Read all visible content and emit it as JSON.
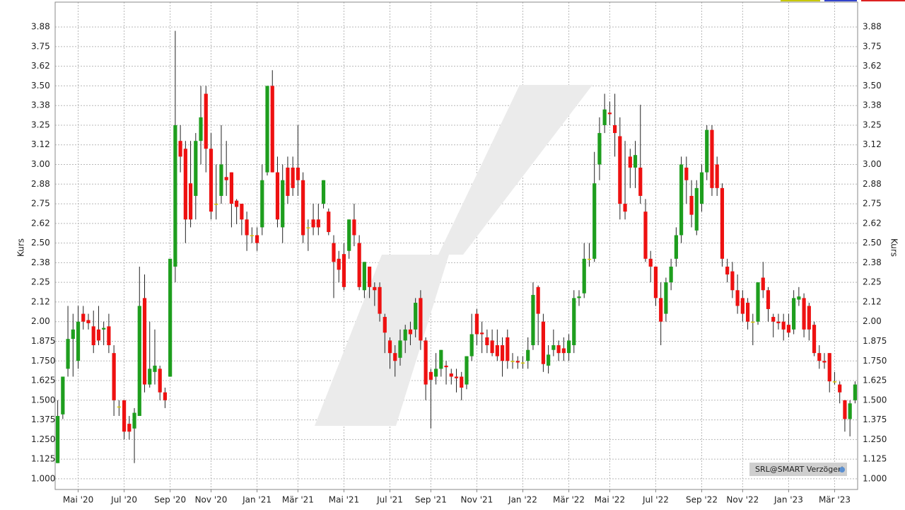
{
  "chart_data": {
    "type": "candlestick",
    "y_label": "Kurs",
    "y2_label": "Kurs",
    "badge": "SRL@SMART Verzögert",
    "up_color": "#1e9e1e",
    "down_color": "#ee1111",
    "flat_color": "#d6c600",
    "grid": true,
    "xlim": [
      -0.5,
      156.5
    ],
    "xticks": [
      {
        "value": 4,
        "label": "Mai '20"
      },
      {
        "value": 13,
        "label": "Jul '20"
      },
      {
        "value": 22,
        "label": "Sep '20"
      },
      {
        "value": 30,
        "label": "Nov '20"
      },
      {
        "value": 39,
        "label": "Jan '21"
      },
      {
        "value": 47,
        "label": "Mär '21"
      },
      {
        "value": 56,
        "label": "Mai '21"
      },
      {
        "value": 65,
        "label": "Jul '21"
      },
      {
        "value": 73,
        "label": "Sep '21"
      },
      {
        "value": 82,
        "label": "Nov '21"
      },
      {
        "value": 91,
        "label": "Jan '22"
      },
      {
        "value": 100,
        "label": "Mär '22"
      },
      {
        "value": 108,
        "label": "Mai '22"
      },
      {
        "value": 117,
        "label": "Jul '22"
      },
      {
        "value": 126,
        "label": "Sep '22"
      },
      {
        "value": 134,
        "label": "Nov '22"
      },
      {
        "value": 143,
        "label": "Jan '23"
      },
      {
        "value": 152,
        "label": "Mär '23"
      }
    ],
    "ylim": [
      0.932,
      4.033
    ],
    "yticks": [
      {
        "value": 1,
        "label": "1.000"
      },
      1.125,
      {
        "value": 1.25,
        "label": "1.250"
      },
      1.375,
      {
        "value": 1.5,
        "label": "1.500"
      },
      1.625,
      {
        "value": 1.75,
        "label": "1.750"
      },
      1.875,
      {
        "value": 2,
        "label": "2.00"
      },
      {
        "value": 2.125,
        "label": "2.12"
      },
      2.25,
      {
        "value": 2.375,
        "label": "2.38"
      },
      {
        "value": 2.5,
        "label": "2.50"
      },
      {
        "value": 2.625,
        "label": "2.62"
      },
      2.75,
      {
        "value": 2.875,
        "label": "2.88"
      },
      {
        "value": 3,
        "label": "3.00"
      },
      {
        "value": 3.125,
        "label": "3.12"
      },
      3.25,
      {
        "value": 3.375,
        "label": "3.38"
      },
      {
        "value": 3.5,
        "label": "3.50"
      },
      {
        "value": 3.625,
        "label": "3.62"
      },
      3.75,
      {
        "value": 3.875,
        "label": "3.88"
      }
    ],
    "open": [
      1.1,
      1.41,
      1.7,
      1.89,
      1.75,
      2.05,
      2.01,
      1.97,
      1.95,
      1.95,
      1.97,
      1.8,
      1.46,
      1.5,
      1.35,
      1.32,
      1.4,
      2.15,
      1.6,
      1.68,
      1.7,
      1.55,
      1.65,
      2.35,
      3.15,
      3.1,
      2.88,
      2.8,
      3.15,
      3.45,
      3.1,
      2.75,
      2.8,
      2.92,
      2.95,
      2.77,
      2.75,
      2.65,
      2.55,
      2.55,
      2.6,
      2.95,
      3.5,
      2.95,
      2.6,
      2.98,
      2.98,
      2.98,
      2.9,
      2.6,
      2.65,
      2.65,
      2.75,
      2.7,
      2.5,
      2.4,
      2.43,
      2.45,
      2.65,
      2.5,
      2.2,
      2.35,
      2.22,
      2.22,
      2.03,
      1.88,
      1.8,
      1.77,
      1.88,
      1.95,
      1.95,
      2.15,
      1.88,
      1.68,
      1.65,
      1.7,
      1.72,
      1.67,
      1.65,
      1.65,
      1.6,
      1.78,
      2.05,
      1.93,
      1.9,
      1.88,
      1.85,
      1.85,
      1.9,
      1.75,
      1.75,
      1.74,
      1.75,
      1.85,
      2.22,
      2.0,
      1.72,
      1.82,
      1.85,
      1.83,
      1.8,
      1.85,
      2.15,
      2.18,
      2.4,
      2.4,
      3.0,
      3.25,
      3.33,
      3.25,
      3.18,
      2.75,
      3.05,
      2.98,
      2.98,
      2.7,
      2.4,
      2.35,
      2.15,
      2.05,
      2.25,
      2.4,
      2.55,
      2.98,
      2.8,
      2.58,
      2.75,
      2.95,
      3.22,
      3.0,
      2.85,
      2.35,
      2.32,
      2.2,
      2.15,
      2.12,
      2.0,
      2.0,
      2.28,
      2.2,
      2.03,
      2.0,
      2.0,
      1.98,
      1.95,
      2.14,
      2.15,
      2.1,
      1.98,
      1.8,
      1.75,
      1.8,
      1.62,
      1.6,
      1.5,
      1.38,
      1.5
    ],
    "high": [
      1.5,
      1.65,
      2.1,
      2.05,
      2.1,
      2.1,
      2.05,
      2.07,
      2.1,
      2.0,
      2.05,
      1.85,
      1.5,
      1.5,
      1.4,
      1.45,
      2.35,
      2.3,
      2.0,
      1.95,
      1.72,
      1.58,
      2.4,
      3.85,
      3.25,
      3.15,
      3.15,
      3.2,
      3.5,
      3.5,
      3.2,
      3.0,
      3.25,
      3.15,
      2.95,
      2.78,
      2.75,
      2.7,
      2.6,
      2.6,
      3.0,
      3.5,
      3.6,
      3.05,
      3.0,
      3.05,
      3.05,
      3.25,
      2.95,
      2.65,
      2.75,
      2.75,
      2.9,
      2.72,
      2.55,
      2.45,
      2.5,
      2.65,
      2.75,
      2.55,
      2.38,
      2.35,
      2.25,
      2.25,
      2.05,
      1.9,
      1.85,
      1.95,
      1.98,
      2.0,
      2.15,
      2.2,
      1.9,
      1.7,
      1.8,
      1.82,
      1.75,
      1.7,
      1.7,
      1.68,
      1.78,
      2.05,
      2.08,
      2.0,
      1.95,
      1.95,
      1.95,
      1.9,
      1.95,
      1.8,
      1.78,
      1.78,
      1.9,
      2.25,
      2.23,
      2.05,
      1.85,
      1.95,
      1.88,
      1.9,
      1.92,
      2.2,
      2.2,
      2.5,
      2.5,
      3.08,
      3.3,
      3.45,
      3.4,
      3.45,
      3.3,
      3.15,
      3.1,
      3.15,
      3.38,
      2.78,
      2.45,
      2.35,
      2.25,
      2.28,
      2.4,
      2.6,
      3.05,
      3.05,
      2.9,
      2.9,
      3.0,
      3.25,
      3.25,
      3.05,
      2.88,
      2.4,
      2.38,
      2.3,
      2.2,
      2.15,
      2.05,
      2.25,
      2.38,
      2.22,
      2.05,
      2.05,
      2.05,
      2.05,
      2.2,
      2.22,
      2.18,
      2.12,
      2.0,
      1.85,
      1.8,
      1.8,
      1.68,
      1.62,
      1.5,
      1.5,
      1.62
    ],
    "low": [
      1.1,
      1.38,
      1.65,
      1.65,
      1.7,
      1.95,
      1.95,
      1.8,
      1.85,
      1.85,
      1.8,
      1.4,
      1.4,
      1.25,
      1.25,
      1.1,
      1.4,
      1.55,
      1.58,
      1.6,
      1.5,
      1.45,
      1.65,
      2.25,
      2.95,
      2.5,
      2.6,
      2.65,
      3.0,
      2.95,
      2.65,
      2.65,
      2.75,
      2.8,
      2.6,
      2.62,
      2.55,
      2.45,
      2.5,
      2.45,
      2.55,
      2.93,
      2.95,
      2.6,
      2.5,
      2.75,
      2.8,
      2.8,
      2.5,
      2.45,
      2.55,
      2.55,
      2.72,
      2.55,
      2.15,
      2.25,
      2.2,
      2.4,
      2.48,
      2.2,
      2.15,
      2.15,
      2.1,
      2.0,
      1.8,
      1.7,
      1.65,
      1.72,
      1.8,
      1.85,
      1.9,
      1.82,
      1.5,
      1.32,
      1.6,
      1.65,
      1.6,
      1.6,
      1.55,
      1.5,
      1.57,
      1.75,
      1.85,
      1.8,
      1.8,
      1.78,
      1.75,
      1.65,
      1.7,
      1.7,
      1.7,
      1.7,
      1.7,
      1.82,
      1.85,
      1.68,
      1.67,
      1.78,
      1.75,
      1.75,
      1.75,
      1.8,
      2.1,
      2.15,
      2.35,
      2.38,
      2.9,
      3.2,
      3.25,
      3.05,
      2.65,
      2.65,
      2.85,
      2.85,
      2.75,
      2.38,
      2.25,
      2.1,
      1.85,
      2.0,
      2.2,
      2.35,
      2.5,
      2.75,
      2.6,
      2.55,
      2.7,
      2.9,
      2.8,
      2.8,
      2.35,
      2.25,
      2.15,
      2.05,
      2.0,
      1.95,
      1.85,
      1.98,
      2.15,
      2.0,
      1.9,
      1.95,
      1.88,
      1.9,
      1.92,
      2.1,
      1.9,
      1.88,
      1.78,
      1.7,
      1.7,
      1.55,
      1.6,
      1.48,
      1.3,
      1.27,
      1.48
    ],
    "close": [
      1.4,
      1.65,
      1.89,
      1.95,
      2.0,
      2.0,
      1.99,
      1.85,
      1.88,
      1.96,
      1.85,
      1.5,
      1.46,
      1.3,
      1.3,
      1.42,
      2.1,
      1.6,
      1.7,
      1.72,
      1.55,
      1.5,
      2.4,
      3.25,
      3.05,
      2.65,
      2.65,
      3.15,
      3.3,
      3.1,
      2.7,
      2.75,
      3.0,
      2.9,
      2.75,
      2.73,
      2.65,
      2.55,
      2.55,
      2.5,
      2.9,
      3.5,
      2.95,
      2.65,
      2.9,
      2.8,
      2.85,
      2.9,
      2.55,
      2.6,
      2.6,
      2.6,
      2.9,
      2.57,
      2.38,
      2.33,
      2.22,
      2.65,
      2.55,
      2.22,
      2.38,
      2.22,
      2.2,
      2.05,
      1.93,
      1.8,
      1.75,
      1.88,
      1.95,
      1.92,
      2.12,
      1.88,
      1.6,
      1.63,
      1.7,
      1.82,
      1.71,
      1.65,
      1.64,
      1.58,
      1.78,
      1.92,
      1.92,
      1.92,
      1.85,
      1.8,
      1.78,
      1.75,
      1.75,
      1.75,
      1.74,
      1.74,
      1.82,
      2.17,
      2.05,
      1.73,
      1.79,
      1.85,
      1.8,
      1.8,
      1.88,
      2.15,
      2.16,
      2.4,
      2.4,
      2.88,
      3.2,
      3.35,
      3.32,
      3.2,
      2.75,
      2.7,
      2.98,
      3.06,
      2.8,
      2.4,
      2.35,
      2.15,
      2.0,
      2.25,
      2.35,
      2.55,
      3.0,
      2.9,
      2.68,
      2.85,
      2.95,
      3.22,
      2.85,
      2.85,
      2.4,
      2.3,
      2.2,
      2.1,
      2.05,
      2.0,
      2.0,
      2.25,
      2.2,
      2.08,
      2.0,
      1.99,
      1.95,
      1.93,
      2.15,
      2.16,
      1.95,
      1.95,
      1.8,
      1.75,
      1.74,
      1.62,
      1.62,
      1.55,
      1.38,
      1.48,
      1.6
    ]
  }
}
